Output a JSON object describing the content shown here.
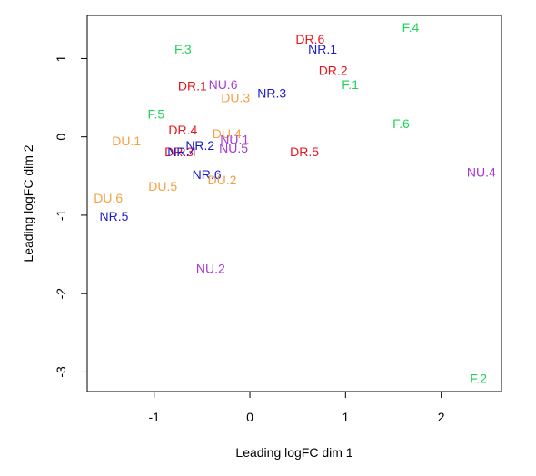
{
  "chart_data": {
    "type": "scatter",
    "xlabel": "Leading logFC dim 1",
    "ylabel": "Leading logFC dim 2",
    "xlim": [
      -1.7,
      2.63
    ],
    "ylim": [
      -3.25,
      1.55
    ],
    "x_ticks": [
      -1,
      0,
      1,
      2
    ],
    "y_ticks": [
      -3,
      -2,
      -1,
      0,
      1
    ],
    "grid": false,
    "legend": "none",
    "marker": "text labels",
    "colors": {
      "DR": "#e8161c",
      "NR": "#1a1ad0",
      "F": "#1fd25a",
      "DU": "#f5a142",
      "NU": "#a63ad6"
    },
    "points": [
      {
        "label": "F.4",
        "group": "F",
        "x": 1.68,
        "y": 1.4
      },
      {
        "label": "DR.6",
        "group": "DR",
        "x": 0.63,
        "y": 1.25
      },
      {
        "label": "NR.1",
        "group": "NR",
        "x": 0.76,
        "y": 1.12
      },
      {
        "label": "F.3",
        "group": "F",
        "x": -0.7,
        "y": 1.12
      },
      {
        "label": "DR.2",
        "group": "DR",
        "x": 0.87,
        "y": 0.85
      },
      {
        "label": "F.1",
        "group": "F",
        "x": 1.05,
        "y": 0.67
      },
      {
        "label": "DR.1",
        "group": "DR",
        "x": -0.6,
        "y": 0.65
      },
      {
        "label": "NU.6",
        "group": "NU",
        "x": -0.28,
        "y": 0.67
      },
      {
        "label": "NR.3",
        "group": "NR",
        "x": 0.23,
        "y": 0.56
      },
      {
        "label": "DU.3",
        "group": "DU",
        "x": -0.15,
        "y": 0.5
      },
      {
        "label": "F.5",
        "group": "F",
        "x": -0.98,
        "y": 0.29
      },
      {
        "label": "F.6",
        "group": "F",
        "x": 1.58,
        "y": 0.17
      },
      {
        "label": "DR.4",
        "group": "DR",
        "x": -0.7,
        "y": 0.09
      },
      {
        "label": "DU.4",
        "group": "DU",
        "x": -0.24,
        "y": 0.04
      },
      {
        "label": "NU.1",
        "group": "NU",
        "x": -0.16,
        "y": -0.03
      },
      {
        "label": "DU.1",
        "group": "DU",
        "x": -1.29,
        "y": -0.05
      },
      {
        "label": "NR.2",
        "group": "NR",
        "x": -0.52,
        "y": -0.11
      },
      {
        "label": "NU.5",
        "group": "NU",
        "x": -0.17,
        "y": -0.14
      },
      {
        "label": "DR.3",
        "group": "DR",
        "x": -0.74,
        "y": -0.19
      },
      {
        "label": "NR.4",
        "group": "NR",
        "x": -0.71,
        "y": -0.19
      },
      {
        "label": "DR.5",
        "group": "DR",
        "x": 0.57,
        "y": -0.19
      },
      {
        "label": "NU.4",
        "group": "NU",
        "x": 2.42,
        "y": -0.45
      },
      {
        "label": "NR.6",
        "group": "NR",
        "x": -0.45,
        "y": -0.48
      },
      {
        "label": "DU.2",
        "group": "DU",
        "x": -0.29,
        "y": -0.55
      },
      {
        "label": "DU.5",
        "group": "DU",
        "x": -0.91,
        "y": -0.63
      },
      {
        "label": "DU.6",
        "group": "DU",
        "x": -1.48,
        "y": -0.78
      },
      {
        "label": "NR.5",
        "group": "NR",
        "x": -1.42,
        "y": -1.01
      },
      {
        "label": "NU.2",
        "group": "NU",
        "x": -0.41,
        "y": -1.68
      },
      {
        "label": "F.2",
        "group": "F",
        "x": 2.39,
        "y": -3.08
      }
    ]
  }
}
